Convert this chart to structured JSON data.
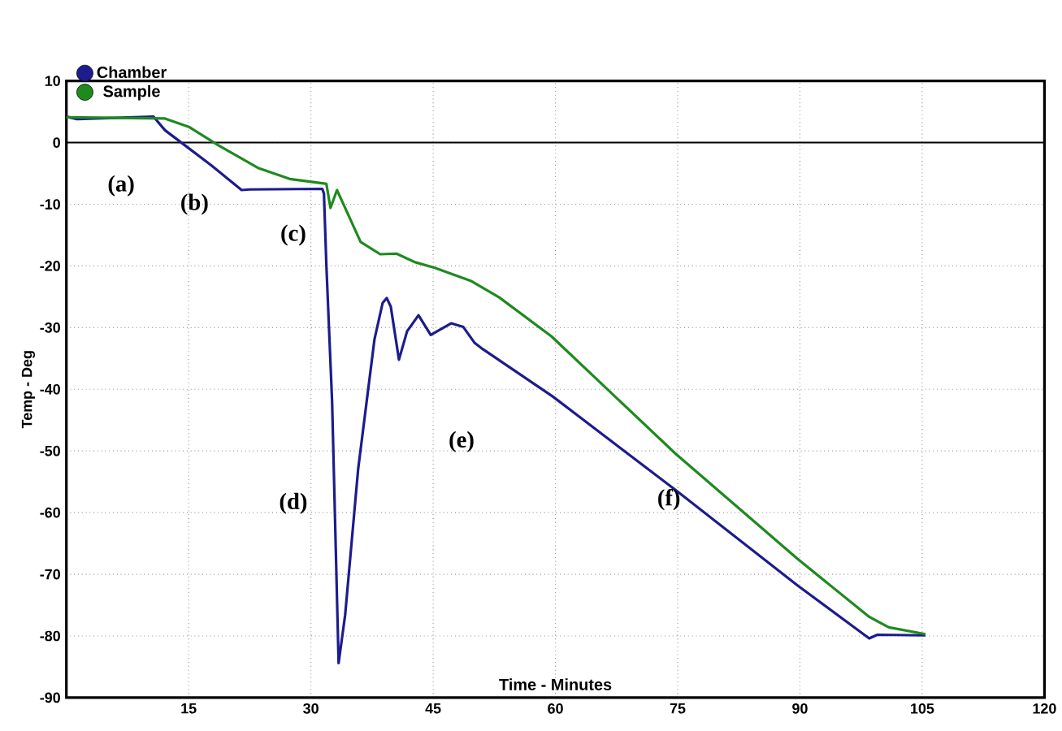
{
  "chart_data": {
    "type": "line",
    "xlabel": "Time - Minutes",
    "ylabel": "Temp - Deg",
    "xlim": [
      0,
      120
    ],
    "xticks": [
      15,
      30,
      45,
      60,
      75,
      90,
      105,
      120
    ],
    "ylim": [
      -90,
      10
    ],
    "yticks": [
      -90,
      -80,
      -70,
      -60,
      -50,
      -40,
      -30,
      -20,
      -10,
      0,
      10
    ],
    "grid": true,
    "legend": "top left",
    "line_style": "solid",
    "ref_lines": [
      {
        "axis": "y",
        "value": 0,
        "color": "#000000"
      }
    ],
    "annotations": [
      "(a)",
      "(b)",
      "(c)",
      "(d)",
      "(e)",
      "(f)"
    ],
    "series": [
      {
        "name": "Chamber",
        "color": "#1c1c8c",
        "x": [
          0,
          1.3,
          10.7,
          12.1,
          14.8,
          17.8,
          21.5,
          22.5,
          31.4,
          31.6,
          31.9,
          32.6,
          33.4,
          34.2,
          35.8,
          37.8,
          38.8,
          39.3,
          39.8,
          40.8,
          41.8,
          43.2,
          44.7,
          47.2,
          48.7,
          50.1,
          51.1,
          59.7,
          74.7,
          89.7,
          98.5,
          99.5,
          105.4
        ],
        "values": [
          4.2,
          3.8,
          4.2,
          2,
          -0.7,
          -3.7,
          -7.7,
          -7.6,
          -7.5,
          -8.3,
          -20,
          -42,
          -84.4,
          -76.6,
          -52.9,
          -31.9,
          -26,
          -25.2,
          -26.6,
          -35.2,
          -30.6,
          -28,
          -31.2,
          -29.3,
          -29.9,
          -32.5,
          -33.5,
          -41.2,
          -56.3,
          -71.8,
          -80.4,
          -79.8,
          -79.9
        ]
      },
      {
        "name": "Sample",
        "color": "#1e8a1e",
        "x": [
          0,
          12.1,
          15.1,
          18.6,
          23.5,
          27.4,
          31.4,
          31.9,
          32.4,
          33.2,
          36.1,
          38.5,
          40.5,
          42.8,
          45.2,
          49.6,
          53.1,
          59.5,
          74.7,
          89.7,
          98.5,
          100.9,
          105.4
        ],
        "values": [
          4.1,
          3.9,
          2.5,
          -0.4,
          -4.1,
          -5.9,
          -6.6,
          -6.7,
          -10.6,
          -7.7,
          -16.1,
          -18.1,
          -18,
          -19.4,
          -20.3,
          -22.4,
          -25.1,
          -31.4,
          -50.4,
          -67.5,
          -76.9,
          -78.6,
          -79.7
        ]
      }
    ]
  }
}
